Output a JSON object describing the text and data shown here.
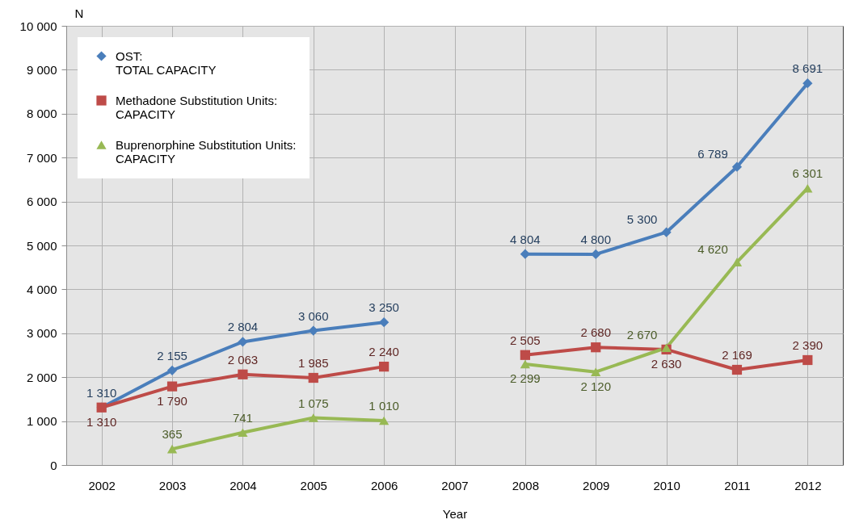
{
  "chart_data": {
    "type": "line",
    "xlabel": "Year",
    "ylabel": "N",
    "categories": [
      "2002",
      "2003",
      "2004",
      "2005",
      "2006",
      "2007",
      "2008",
      "2009",
      "2010",
      "2011",
      "2012"
    ],
    "series": [
      {
        "name": "OST: TOTAL CAPACITY",
        "color": "#4a7ebb",
        "marker": "diamond",
        "values": [
          1310,
          2155,
          2804,
          3060,
          3250,
          null,
          4804,
          4800,
          5300,
          6789,
          8691
        ],
        "value_labels": [
          "1 310",
          "2 155",
          "2 804",
          "3 060",
          "3 250",
          null,
          "4 804",
          "4 800",
          "5 300",
          "6 789",
          "8 691"
        ]
      },
      {
        "name": "Methadone Substitution Units: CAPACITY",
        "color": "#be4b48",
        "marker": "square",
        "values": [
          1310,
          1790,
          2063,
          1985,
          2240,
          null,
          2505,
          2680,
          2630,
          2169,
          2390
        ],
        "value_labels": [
          "1 310",
          "1 790",
          "2 063",
          "1 985",
          "2 240",
          null,
          "2 505",
          "2 680",
          "2 630",
          "2 169",
          "2 390"
        ]
      },
      {
        "name": "Buprenorphine Substitution Units: CAPACITY",
        "color": "#98b954",
        "marker": "triangle",
        "values": [
          null,
          365,
          741,
          1075,
          1010,
          null,
          2299,
          2120,
          2670,
          4620,
          6301
        ],
        "value_labels": [
          null,
          "365",
          "741",
          "1 075",
          "1 010",
          null,
          "2 299",
          "2 120",
          "2 670",
          "4 620",
          "6 301"
        ]
      }
    ],
    "ylim": [
      0,
      10000
    ],
    "yticks": [
      0,
      {
        "value": 1000,
        "label": "1 000"
      },
      {
        "value": 2000,
        "label": "2 000"
      },
      {
        "value": 3000,
        "label": "3 000"
      },
      {
        "value": 4000,
        "label": "4 000"
      },
      {
        "value": 5000,
        "label": "5 000"
      },
      {
        "value": 6000,
        "label": "6 000"
      },
      {
        "value": 7000,
        "label": "7 000"
      },
      {
        "value": 8000,
        "label": "8 000"
      },
      {
        "value": 9000,
        "label": "9 000"
      },
      {
        "value": 10000,
        "label": "10 000"
      }
    ],
    "grid": true,
    "legend": "top left",
    "line_style": "solid"
  }
}
